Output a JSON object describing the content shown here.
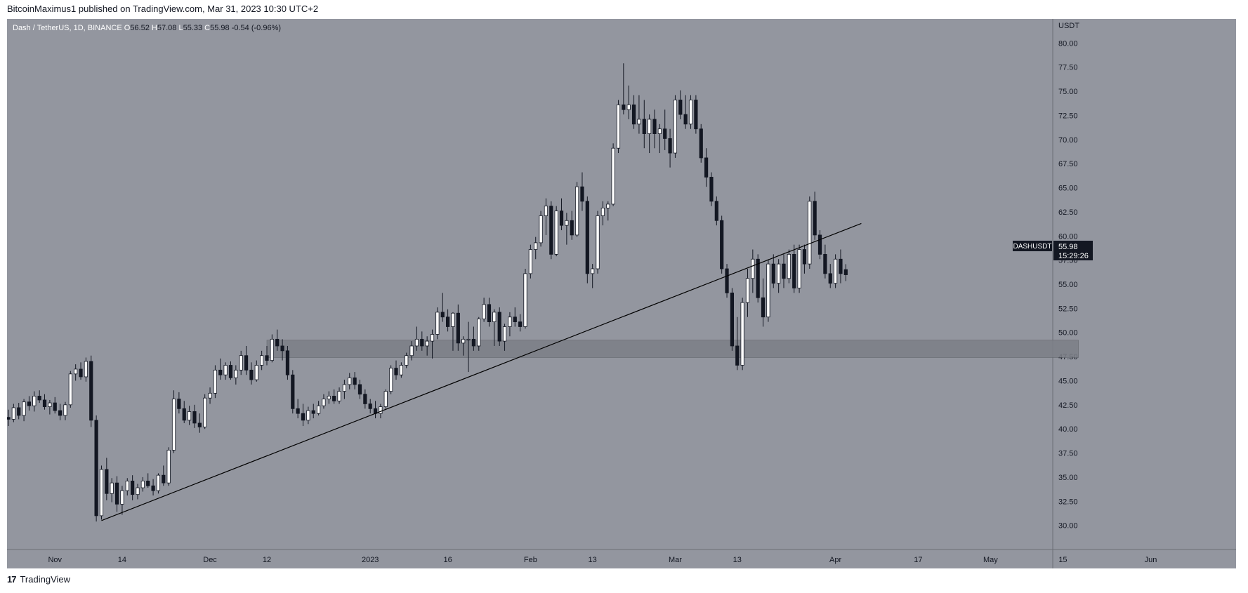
{
  "header": {
    "published": "BitcoinMaximus1 published on TradingView.com, Mar 31, 2023 10:30 UTC+2"
  },
  "footer": {
    "brand": "TradingView",
    "logo_glyph": "17"
  },
  "legend": {
    "symbol": "Dash / TetherUS, 1D, BINANCE",
    "o_label": "O",
    "o_value": "56.52",
    "h_label": "H",
    "h_value": "57.08",
    "l_label": "L",
    "l_value": "55.33",
    "c_label": "C",
    "c_value": "55.98",
    "change": "-0.54 (-0.96%)"
  },
  "price_tag": {
    "symbol": "DASHUSDT",
    "price": "55.98",
    "countdown": "15:29:26"
  },
  "colors": {
    "background": "#93969f",
    "price_axis": "#93969f",
    "up_body": "#ffffff",
    "down_body": "#131722",
    "wick": "#131722",
    "zone": "#7c7f87",
    "trendline": "#000000",
    "price_tag_bg": "#131722"
  },
  "chart_data": {
    "type": "candlestick",
    "title": "Dash / TetherUS, 1D, BINANCE",
    "y_unit": "USDT",
    "ylim": [
      27.5,
      82.5
    ],
    "y_ticks": [
      "30.00",
      "32.50",
      "35.00",
      "37.50",
      "40.00",
      "42.50",
      "45.00",
      "47.50",
      "50.00",
      "52.50",
      "55.00",
      "57.50",
      "60.00",
      "62.50",
      "65.00",
      "67.50",
      "70.00",
      "72.50",
      "75.00",
      "77.50",
      "80.00"
    ],
    "x_ticks": [
      {
        "label": "Nov",
        "date": "2022-11-01"
      },
      {
        "label": "14",
        "date": "2022-11-14"
      },
      {
        "label": "Dec",
        "date": "2022-12-01"
      },
      {
        "label": "12",
        "date": "2022-12-12"
      },
      {
        "label": "2023",
        "date": "2023-01-01"
      },
      {
        "label": "16",
        "date": "2023-01-16"
      },
      {
        "label": "Feb",
        "date": "2023-02-01"
      },
      {
        "label": "13",
        "date": "2023-02-13"
      },
      {
        "label": "Mar",
        "date": "2023-03-01"
      },
      {
        "label": "13",
        "date": "2023-03-13"
      },
      {
        "label": "Apr",
        "date": "2023-04-01"
      },
      {
        "label": "17",
        "date": "2023-04-17"
      },
      {
        "label": "May",
        "date": "2023-05-01"
      },
      {
        "label": "15",
        "date": "2023-05-15"
      },
      {
        "label": "Jun",
        "date": "2023-06-01"
      }
    ],
    "ohlc": [
      [
        "2022-10-23",
        41.2,
        42.0,
        40.3,
        41.0
      ],
      [
        "2022-10-24",
        41.0,
        42.6,
        40.7,
        42.2
      ],
      [
        "2022-10-25",
        42.2,
        42.7,
        41.0,
        41.4
      ],
      [
        "2022-10-26",
        41.4,
        43.1,
        40.8,
        42.8
      ],
      [
        "2022-10-27",
        42.8,
        43.4,
        41.9,
        42.4
      ],
      [
        "2022-10-28",
        42.4,
        43.9,
        41.8,
        43.4
      ],
      [
        "2022-10-29",
        43.4,
        44.0,
        42.7,
        43.0
      ],
      [
        "2022-10-30",
        43.0,
        43.6,
        42.0,
        42.3
      ],
      [
        "2022-10-31",
        42.3,
        43.0,
        41.5,
        42.7
      ],
      [
        "2022-11-01",
        42.7,
        43.3,
        41.6,
        41.9
      ],
      [
        "2022-11-02",
        41.9,
        42.6,
        40.9,
        41.4
      ],
      [
        "2022-11-03",
        41.4,
        42.8,
        40.9,
        42.5
      ],
      [
        "2022-11-04",
        42.5,
        46.0,
        42.2,
        45.7
      ],
      [
        "2022-11-05",
        45.7,
        46.7,
        45.0,
        46.2
      ],
      [
        "2022-11-06",
        46.2,
        46.9,
        45.1,
        45.4
      ],
      [
        "2022-11-07",
        45.4,
        47.4,
        44.9,
        47.0
      ],
      [
        "2022-11-08",
        47.0,
        47.6,
        40.2,
        40.9
      ],
      [
        "2022-11-09",
        40.9,
        41.4,
        30.4,
        31.0
      ],
      [
        "2022-11-10",
        31.0,
        36.2,
        30.6,
        35.8
      ],
      [
        "2022-11-11",
        35.8,
        37.0,
        32.6,
        33.3
      ],
      [
        "2022-11-12",
        33.3,
        34.9,
        32.4,
        34.4
      ],
      [
        "2022-11-13",
        34.4,
        35.1,
        31.4,
        32.2
      ],
      [
        "2022-11-14",
        32.2,
        34.1,
        31.1,
        33.6
      ],
      [
        "2022-11-15",
        33.6,
        34.9,
        33.1,
        34.6
      ],
      [
        "2022-11-16",
        34.6,
        35.2,
        32.6,
        33.2
      ],
      [
        "2022-11-17",
        33.2,
        34.3,
        32.7,
        33.9
      ],
      [
        "2022-11-18",
        33.9,
        35.0,
        33.5,
        34.6
      ],
      [
        "2022-11-19",
        34.6,
        35.4,
        33.9,
        34.1
      ],
      [
        "2022-11-20",
        34.1,
        34.8,
        33.1,
        33.6
      ],
      [
        "2022-11-21",
        33.6,
        35.4,
        33.3,
        35.2
      ],
      [
        "2022-11-22",
        35.2,
        36.2,
        34.1,
        34.4
      ],
      [
        "2022-11-23",
        34.4,
        38.1,
        34.1,
        37.8
      ],
      [
        "2022-11-24",
        37.8,
        44.0,
        37.5,
        43.1
      ],
      [
        "2022-11-25",
        43.1,
        43.8,
        41.6,
        42.1
      ],
      [
        "2022-11-26",
        42.1,
        42.9,
        40.6,
        40.9
      ],
      [
        "2022-11-27",
        40.9,
        42.4,
        40.4,
        41.8
      ],
      [
        "2022-11-28",
        41.8,
        42.5,
        40.1,
        40.6
      ],
      [
        "2022-11-29",
        40.6,
        41.6,
        39.6,
        40.2
      ],
      [
        "2022-11-30",
        40.2,
        43.6,
        40.0,
        43.2
      ],
      [
        "2022-12-01",
        43.2,
        44.3,
        42.6,
        43.7
      ],
      [
        "2022-12-02",
        43.7,
        46.6,
        43.2,
        46.1
      ],
      [
        "2022-12-03",
        46.1,
        47.3,
        45.1,
        45.6
      ],
      [
        "2022-12-04",
        45.6,
        46.9,
        45.1,
        46.6
      ],
      [
        "2022-12-05",
        46.6,
        47.0,
        45.1,
        45.3
      ],
      [
        "2022-12-06",
        45.3,
        46.6,
        44.6,
        46.1
      ],
      [
        "2022-12-07",
        46.1,
        48.1,
        45.6,
        47.6
      ],
      [
        "2022-12-08",
        47.6,
        48.6,
        45.6,
        46.1
      ],
      [
        "2022-12-09",
        46.1,
        46.9,
        44.6,
        45.1
      ],
      [
        "2022-12-10",
        45.1,
        47.1,
        44.9,
        46.6
      ],
      [
        "2022-12-11",
        46.6,
        48.1,
        46.1,
        47.6
      ],
      [
        "2022-12-12",
        47.6,
        48.6,
        46.6,
        47.1
      ],
      [
        "2022-12-13",
        47.1,
        49.8,
        46.9,
        49.3
      ],
      [
        "2022-12-14",
        49.3,
        50.3,
        48.1,
        48.6
      ],
      [
        "2022-12-15",
        48.6,
        49.3,
        47.1,
        48.1
      ],
      [
        "2022-12-16",
        48.1,
        48.6,
        45.1,
        45.6
      ],
      [
        "2022-12-17",
        45.6,
        46.1,
        41.6,
        42.1
      ],
      [
        "2022-12-18",
        42.1,
        43.1,
        41.1,
        41.6
      ],
      [
        "2022-12-19",
        41.6,
        42.6,
        40.3,
        40.9
      ],
      [
        "2022-12-20",
        40.9,
        42.3,
        40.5,
        41.9
      ],
      [
        "2022-12-21",
        41.9,
        42.6,
        41.1,
        41.6
      ],
      [
        "2022-12-22",
        41.6,
        42.9,
        41.4,
        42.4
      ],
      [
        "2022-12-23",
        42.4,
        43.6,
        42.1,
        43.1
      ],
      [
        "2022-12-24",
        43.1,
        43.9,
        42.6,
        43.4
      ],
      [
        "2022-12-25",
        43.4,
        44.1,
        42.6,
        42.9
      ],
      [
        "2022-12-26",
        42.9,
        44.3,
        42.6,
        43.9
      ],
      [
        "2022-12-27",
        43.9,
        45.1,
        43.1,
        44.6
      ],
      [
        "2022-12-28",
        44.6,
        45.8,
        44.1,
        45.3
      ],
      [
        "2022-12-29",
        45.3,
        45.9,
        44.1,
        44.6
      ],
      [
        "2022-12-30",
        44.6,
        45.1,
        43.1,
        43.6
      ],
      [
        "2022-12-31",
        43.6,
        44.1,
        42.1,
        42.6
      ],
      [
        "2023-01-01",
        42.6,
        43.1,
        41.6,
        42.1
      ],
      [
        "2023-01-02",
        42.1,
        42.9,
        41.1,
        41.6
      ],
      [
        "2023-01-03",
        41.6,
        42.6,
        41.1,
        42.3
      ],
      [
        "2023-01-04",
        42.3,
        44.1,
        42.1,
        43.9
      ],
      [
        "2023-01-05",
        43.9,
        46.6,
        43.6,
        46.3
      ],
      [
        "2023-01-06",
        46.3,
        47.1,
        45.1,
        45.6
      ],
      [
        "2023-01-07",
        45.6,
        46.9,
        45.3,
        46.6
      ],
      [
        "2023-01-08",
        46.6,
        47.9,
        46.3,
        47.6
      ],
      [
        "2023-01-09",
        47.6,
        49.1,
        47.1,
        48.6
      ],
      [
        "2023-01-10",
        48.6,
        50.6,
        48.1,
        49.3
      ],
      [
        "2023-01-11",
        49.3,
        50.1,
        48.1,
        48.6
      ],
      [
        "2023-01-12",
        48.6,
        49.6,
        47.6,
        49.1
      ],
      [
        "2023-01-13",
        49.1,
        50.3,
        47.3,
        49.8
      ],
      [
        "2023-01-14",
        49.8,
        52.6,
        49.3,
        52.1
      ],
      [
        "2023-01-15",
        52.1,
        54.1,
        51.1,
        51.6
      ],
      [
        "2023-01-16",
        51.6,
        52.4,
        50.1,
        50.6
      ],
      [
        "2023-01-17",
        50.6,
        52.1,
        48.1,
        52.0
      ],
      [
        "2023-01-18",
        52.0,
        52.9,
        48.1,
        48.9
      ],
      [
        "2023-01-19",
        48.9,
        49.6,
        47.6,
        49.3
      ],
      [
        "2023-01-20",
        49.3,
        51.1,
        45.9,
        49.3
      ],
      [
        "2023-01-21",
        49.3,
        50.6,
        48.1,
        48.6
      ],
      [
        "2023-01-22",
        48.6,
        51.6,
        48.1,
        51.4
      ],
      [
        "2023-01-23",
        51.4,
        53.6,
        51.1,
        52.9
      ],
      [
        "2023-01-24",
        52.9,
        53.6,
        50.6,
        51.1
      ],
      [
        "2023-01-25",
        51.1,
        52.4,
        48.6,
        52.1
      ],
      [
        "2023-01-26",
        52.1,
        52.6,
        48.6,
        49.1
      ],
      [
        "2023-01-27",
        49.1,
        50.9,
        48.1,
        50.6
      ],
      [
        "2023-01-28",
        50.6,
        52.1,
        49.6,
        51.6
      ],
      [
        "2023-01-29",
        51.6,
        52.6,
        50.6,
        51.1
      ],
      [
        "2023-01-30",
        51.1,
        51.9,
        50.1,
        50.6
      ],
      [
        "2023-01-31",
        50.6,
        56.6,
        50.4,
        56.1
      ],
      [
        "2023-02-01",
        56.1,
        59.1,
        55.6,
        58.6
      ],
      [
        "2023-02-02",
        58.6,
        59.9,
        57.6,
        59.3
      ],
      [
        "2023-02-03",
        59.3,
        62.6,
        58.9,
        62.1
      ],
      [
        "2023-02-04",
        62.1,
        63.9,
        60.1,
        63.1
      ],
      [
        "2023-02-05",
        63.1,
        63.6,
        57.6,
        58.1
      ],
      [
        "2023-02-06",
        58.1,
        63.1,
        57.9,
        62.6
      ],
      [
        "2023-02-07",
        62.6,
        63.9,
        60.6,
        61.1
      ],
      [
        "2023-02-08",
        61.1,
        62.4,
        59.1,
        61.6
      ],
      [
        "2023-02-09",
        61.6,
        62.6,
        59.6,
        60.1
      ],
      [
        "2023-02-10",
        60.1,
        65.6,
        59.9,
        65.1
      ],
      [
        "2023-02-11",
        65.1,
        66.6,
        62.6,
        63.6
      ],
      [
        "2023-02-12",
        63.6,
        64.1,
        55.1,
        56.1
      ],
      [
        "2023-02-13",
        56.1,
        57.1,
        54.6,
        56.6
      ],
      [
        "2023-02-14",
        56.6,
        62.6,
        56.1,
        62.1
      ],
      [
        "2023-02-15",
        62.1,
        63.6,
        61.1,
        62.9
      ],
      [
        "2023-02-16",
        62.9,
        63.6,
        61.6,
        63.3
      ],
      [
        "2023-02-17",
        63.3,
        69.6,
        63.1,
        69.1
      ],
      [
        "2023-02-18",
        69.1,
        74.1,
        68.6,
        73.6
      ],
      [
        "2023-02-19",
        73.6,
        77.9,
        72.6,
        73.1
      ],
      [
        "2023-02-20",
        73.1,
        75.6,
        72.1,
        73.6
      ],
      [
        "2023-02-21",
        73.6,
        74.6,
        71.1,
        71.6
      ],
      [
        "2023-02-22",
        71.6,
        74.6,
        70.6,
        72.1
      ],
      [
        "2023-02-23",
        72.1,
        74.1,
        69.1,
        70.6
      ],
      [
        "2023-02-24",
        70.6,
        72.6,
        68.6,
        72.1
      ],
      [
        "2023-02-25",
        72.1,
        73.1,
        69.1,
        70.6
      ],
      [
        "2023-02-26",
        70.6,
        71.6,
        68.6,
        71.1
      ],
      [
        "2023-02-27",
        71.1,
        73.1,
        68.9,
        70.1
      ],
      [
        "2023-02-28",
        70.1,
        71.1,
        67.1,
        68.6
      ],
      [
        "2023-03-01",
        68.6,
        74.6,
        68.1,
        74.1
      ],
      [
        "2023-03-02",
        74.1,
        75.1,
        72.1,
        72.6
      ],
      [
        "2023-03-03",
        72.6,
        74.6,
        71.1,
        71.6
      ],
      [
        "2023-03-04",
        71.6,
        74.6,
        71.1,
        74.1
      ],
      [
        "2023-03-05",
        74.1,
        74.6,
        70.6,
        71.1
      ],
      [
        "2023-03-06",
        71.1,
        71.6,
        67.6,
        68.1
      ],
      [
        "2023-03-07",
        68.1,
        69.1,
        65.1,
        66.1
      ],
      [
        "2023-03-08",
        66.1,
        66.6,
        63.1,
        63.6
      ],
      [
        "2023-03-09",
        63.6,
        64.1,
        61.1,
        61.6
      ],
      [
        "2023-03-10",
        61.6,
        62.1,
        56.1,
        56.6
      ],
      [
        "2023-03-11",
        56.6,
        57.1,
        53.6,
        54.1
      ],
      [
        "2023-03-12",
        54.1,
        54.6,
        48.1,
        48.6
      ],
      [
        "2023-03-13",
        48.6,
        51.6,
        46.1,
        46.6
      ],
      [
        "2023-03-14",
        46.6,
        53.6,
        46.1,
        53.1
      ],
      [
        "2023-03-15",
        53.1,
        56.6,
        51.6,
        55.6
      ],
      [
        "2023-03-16",
        55.6,
        58.6,
        54.1,
        57.6
      ],
      [
        "2023-03-17",
        57.6,
        58.1,
        53.1,
        53.6
      ],
      [
        "2023-03-18",
        53.6,
        55.6,
        50.6,
        51.6
      ],
      [
        "2023-03-19",
        51.6,
        57.6,
        51.1,
        57.1
      ],
      [
        "2023-03-20",
        57.1,
        58.1,
        54.6,
        55.1
      ],
      [
        "2023-03-21",
        55.1,
        57.6,
        54.1,
        57.1
      ],
      [
        "2023-03-22",
        57.1,
        58.1,
        54.6,
        55.6
      ],
      [
        "2023-03-23",
        55.6,
        58.6,
        55.1,
        58.1
      ],
      [
        "2023-03-24",
        58.1,
        59.1,
        54.1,
        54.6
      ],
      [
        "2023-03-25",
        54.6,
        59.1,
        54.1,
        58.6
      ],
      [
        "2023-03-26",
        58.6,
        59.1,
        56.1,
        57.1
      ],
      [
        "2023-03-27",
        57.1,
        64.1,
        56.6,
        63.6
      ],
      [
        "2023-03-28",
        63.6,
        64.6,
        59.6,
        60.1
      ],
      [
        "2023-03-29",
        60.1,
        60.6,
        57.6,
        58.1
      ],
      [
        "2023-03-30",
        58.1,
        59.1,
        55.6,
        56.1
      ],
      [
        "2023-03-31",
        56.1,
        57.1,
        54.6,
        55.1
      ],
      [
        "2023-04-01",
        55.1,
        58.1,
        54.6,
        57.6
      ],
      [
        "2023-04-02",
        57.6,
        58.6,
        55.1,
        56.1
      ],
      [
        "2023-04-03",
        56.52,
        57.08,
        55.33,
        55.98
      ]
    ],
    "trendline": {
      "from": [
        "2022-11-10",
        30.5
      ],
      "to": [
        "2023-04-06",
        61.3
      ]
    },
    "zone": {
      "from": "2022-12-12",
      "to": "2023-05-18",
      "low": 47.4,
      "high": 49.2
    }
  }
}
